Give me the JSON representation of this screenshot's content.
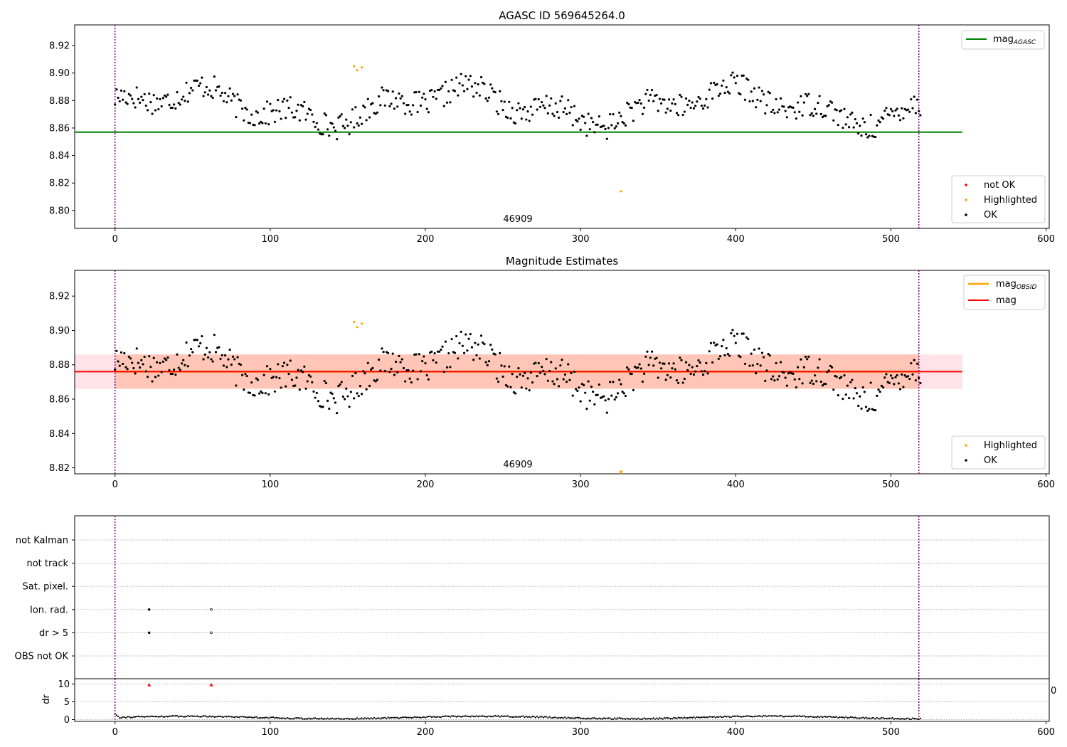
{
  "figure": {
    "top_title": "AGASC ID 569645264.0",
    "mid_title": "Magnitude Estimates",
    "obsid_label": "46909",
    "x_tick_labels": [
      "0",
      "100",
      "200",
      "300",
      "400",
      "500",
      "600"
    ],
    "stray_label": "0",
    "colors": {
      "ok": "#000000",
      "highlighted": "#ffa500",
      "not_ok": "#ff0000",
      "mag_agasc": "#008000",
      "mag": "#ff0000",
      "mag_obsid": "#ffa500",
      "band_fill": "#ffc0cb",
      "band_inner": "#ffa07a",
      "obs_boundary": "#800080",
      "grid": "#b0b0b0"
    }
  },
  "chart_data": [
    {
      "type": "scatter",
      "title": "AGASC ID 569645264.0",
      "xlim": [
        -26,
        602
      ],
      "ylim": [
        8.787,
        8.935
      ],
      "yticks": [
        "8.80",
        "8.82",
        "8.84",
        "8.86",
        "8.88",
        "8.90",
        "8.92"
      ],
      "legend_lines": [
        {
          "label_main": "mag",
          "label_sub": "AGASC",
          "color": "#008000"
        }
      ],
      "legend_markers": [
        {
          "label": "not OK",
          "color": "#ff0000"
        },
        {
          "label": "Highlighted",
          "color": "#ffa500"
        },
        {
          "label": "OK",
          "color": "#000000"
        }
      ],
      "hlines": [
        {
          "name": "mag_AGASC",
          "y": 8.857,
          "x0": -26,
          "x1": 546
        }
      ],
      "vlines": [
        0,
        518
      ],
      "annotation": {
        "text": "46909",
        "x": 260,
        "y": 8.79
      },
      "series": [
        {
          "name": "OK",
          "num_points": 520,
          "range": [
            0,
            519
          ],
          "seed": 17,
          "mean": 8.876,
          "scatter": 0.009
        },
        {
          "name": "Highlighted",
          "x": [
            154,
            156,
            159,
            326
          ],
          "y": [
            8.905,
            8.902,
            8.904,
            8.814
          ]
        }
      ]
    },
    {
      "type": "scatter",
      "title": "Magnitude Estimates",
      "xlim": [
        -26,
        602
      ],
      "ylim": [
        8.8165,
        8.935
      ],
      "yticks": [
        "8.82",
        "8.84",
        "8.86",
        "8.88",
        "8.90",
        "8.92"
      ],
      "legend_lines": [
        {
          "label_main": "mag",
          "label_sub": "OBSID",
          "color": "#ffa500"
        },
        {
          "label_main": "mag",
          "label_sub": "",
          "color": "#ff0000"
        }
      ],
      "legend_markers": [
        {
          "label": "Highlighted",
          "color": "#ffa500"
        },
        {
          "label": "OK",
          "color": "#000000"
        }
      ],
      "band_outer": {
        "y0": 8.866,
        "y1": 8.886,
        "x0": -26,
        "x1": 546
      },
      "band_inner": {
        "y0": 8.866,
        "y1": 8.886,
        "x0": 0,
        "x1": 518
      },
      "hlines": [
        {
          "name": "mag",
          "y": 8.876,
          "x0": -26,
          "x1": 546
        },
        {
          "name": "mag_OBSID",
          "y": 8.876,
          "x0": 0,
          "x1": 518
        }
      ],
      "vlines": [
        0,
        518
      ],
      "annotation": {
        "text": "46909",
        "x": 260,
        "y": 8.821
      },
      "series": [
        {
          "name": "OK",
          "num_points": 520,
          "range": [
            0,
            519
          ],
          "seed": 17,
          "mean": 8.876,
          "scatter": 0.009
        },
        {
          "name": "Highlighted",
          "x": [
            154,
            156,
            159
          ],
          "y": [
            8.905,
            8.902,
            8.904
          ]
        },
        {
          "name": "Highlighted (below axis)",
          "x": [
            326
          ],
          "y": [
            8.8175
          ]
        }
      ]
    },
    {
      "type": "scatter",
      "title": "",
      "xlim": [
        -26,
        602
      ],
      "categories": [
        "not Kalman",
        "not track",
        "Sat. pixel.",
        "Ion. rad.",
        "dr > 5",
        "OBS not OK"
      ],
      "flag_points": [
        {
          "category": "Ion. rad.",
          "x": [
            22,
            62
          ]
        },
        {
          "category": "dr > 5",
          "x": [
            22,
            62
          ]
        }
      ],
      "vlines": [
        0,
        518
      ]
    },
    {
      "type": "scatter",
      "title": "",
      "ylabel": "dr",
      "xlim": [
        -26,
        602
      ],
      "ylim": [
        -0.5,
        11.5
      ],
      "yticks": [
        "0",
        "5",
        "10"
      ],
      "series": [
        {
          "name": "dr",
          "num_points": 520,
          "range": [
            0,
            519
          ],
          "seed": 91,
          "mean": 0.6
        },
        {
          "name": "dr > 5",
          "x": [
            22,
            62
          ],
          "y": [
            9.8,
            9.8
          ]
        }
      ]
    }
  ]
}
